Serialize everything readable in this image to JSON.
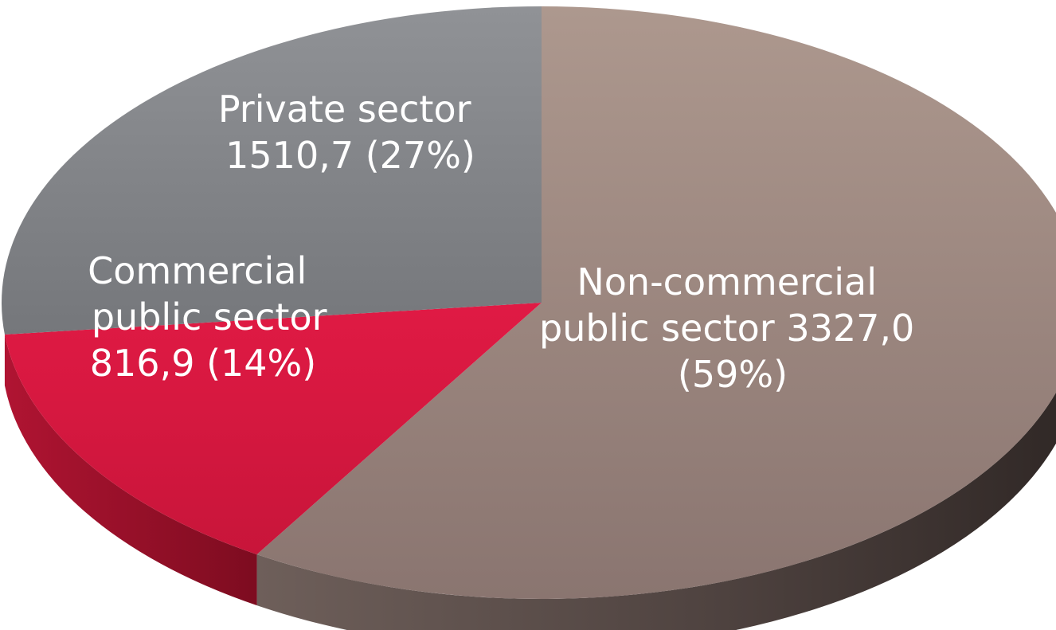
{
  "chart_data": {
    "type": "pie",
    "style": "3d",
    "slices": [
      {
        "label": "Non-commercial public sector",
        "value": 3327.0,
        "percent": 59,
        "text_lines": [
          "Non-commercial",
          "public sector  3327,0",
          "(59%)"
        ],
        "top_color": "#a0867d",
        "side_color": "#5a4a45"
      },
      {
        "label": "Commercial public sector",
        "value": 816.9,
        "percent": 14,
        "text_lines": [
          "Commercial",
          "public sector",
          "816,9 (14%)"
        ],
        "top_color": "#d81940",
        "side_color": "#9c1028"
      },
      {
        "label": "Private sector",
        "value": 1510.7,
        "percent": 27,
        "text_lines": [
          "Private sector",
          "1510,7 (27%)"
        ],
        "top_color": "#84868a",
        "side_color": "#4a4b4e"
      }
    ]
  }
}
